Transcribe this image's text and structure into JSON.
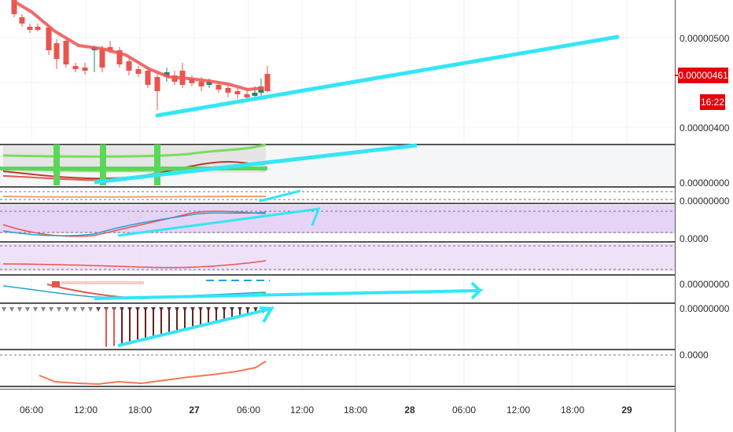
{
  "price_axis": {
    "main_labels": [
      "0.00000500",
      "0.00000400"
    ],
    "current_price": "0.00000461",
    "countdown": "16:22",
    "indicator_labels": [
      "0.00000000",
      "0.00000000",
      "0.0000",
      "0.00000000",
      "0.00000000",
      "0.0000"
    ]
  },
  "time_axis": {
    "labels": [
      "06:00",
      "12:00",
      "18:00",
      "27",
      "06:00",
      "12:00",
      "18:00",
      "28",
      "06:00",
      "12:00",
      "18:00",
      "29"
    ]
  },
  "colors": {
    "bull": "#2e7d6b",
    "bear": "#e8554e",
    "ma": "#f05a5a",
    "trendline": "#33e6f5",
    "price_tag": "#e8000b",
    "highlight_band": "#d9c2f0"
  },
  "chart_data": {
    "type": "candlestick",
    "x_ticks": [
      "06:00",
      "12:00",
      "18:00",
      "27",
      "06:00",
      "12:00",
      "18:00",
      "28",
      "06:00",
      "12:00",
      "18:00",
      "29"
    ],
    "y_ticks": [
      "0.00000500",
      "0.00000400"
    ],
    "last_price": "0.00000461"
  }
}
